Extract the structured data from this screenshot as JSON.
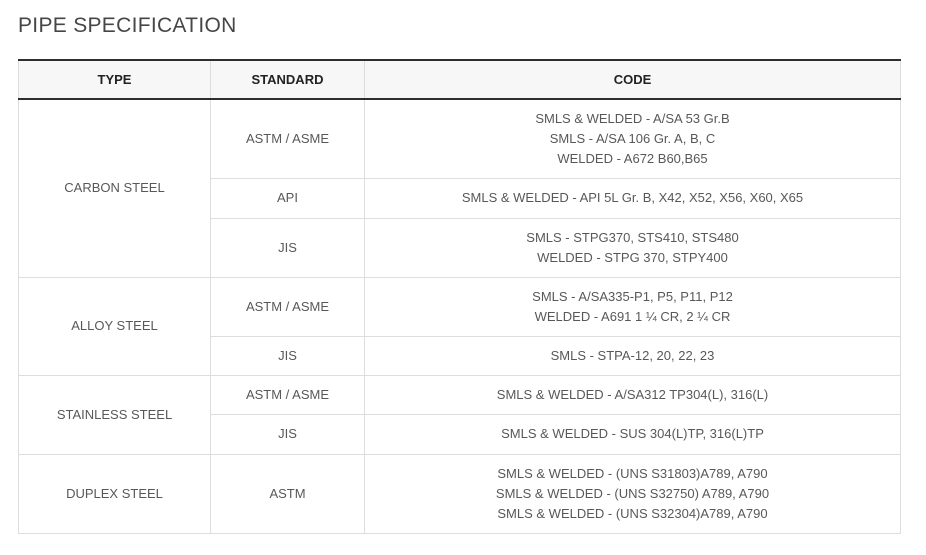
{
  "page": {
    "title": "PIPE SPECIFICATION"
  },
  "colors": {
    "header_background": "#f7f7f7",
    "header_rule": "#2e2e2e",
    "grid_line": "#dddddd",
    "title_text": "#464646",
    "header_text": "#222222",
    "body_text": "#58585a"
  },
  "table": {
    "columns": [
      "TYPE",
      "STANDARD",
      "CODE"
    ],
    "groups": [
      {
        "type": "CARBON STEEL",
        "rows": [
          {
            "standard": "ASTM / ASME",
            "codes": [
              "SMLS & WELDED - A/SA 53 Gr.B",
              "SMLS - A/SA 106 Gr. A, B, C",
              "WELDED - A672 B60,B65"
            ]
          },
          {
            "standard": "API",
            "codes": [
              "SMLS & WELDED - API 5L Gr. B, X42, X52, X56, X60, X65"
            ]
          },
          {
            "standard": "JIS",
            "codes": [
              "SMLS - STPG370, STS410, STS480",
              "WELDED - STPG 370, STPY400"
            ]
          }
        ]
      },
      {
        "type": "ALLOY STEEL",
        "rows": [
          {
            "standard": "ASTM / ASME",
            "codes": [
              "SMLS - A/SA335-P1, P5, P11, P12",
              "WELDED - A691 1 ¼ CR, 2 ¼ CR"
            ]
          },
          {
            "standard": "JIS",
            "codes": [
              "SMLS - STPA-12, 20, 22, 23"
            ]
          }
        ]
      },
      {
        "type": "STAINLESS STEEL",
        "rows": [
          {
            "standard": "ASTM / ASME",
            "codes": [
              "SMLS & WELDED - A/SA312 TP304(L), 316(L)"
            ]
          },
          {
            "standard": "JIS",
            "codes": [
              "SMLS & WELDED - SUS 304(L)TP, 316(L)TP"
            ]
          }
        ]
      },
      {
        "type": "DUPLEX STEEL",
        "rows": [
          {
            "standard": "ASTM",
            "codes": [
              "SMLS & WELDED - (UNS S31803)A789, A790",
              "SMLS & WELDED - (UNS S32750) A789, A790",
              "SMLS & WELDED - (UNS S32304)A789, A790"
            ]
          }
        ]
      }
    ]
  }
}
